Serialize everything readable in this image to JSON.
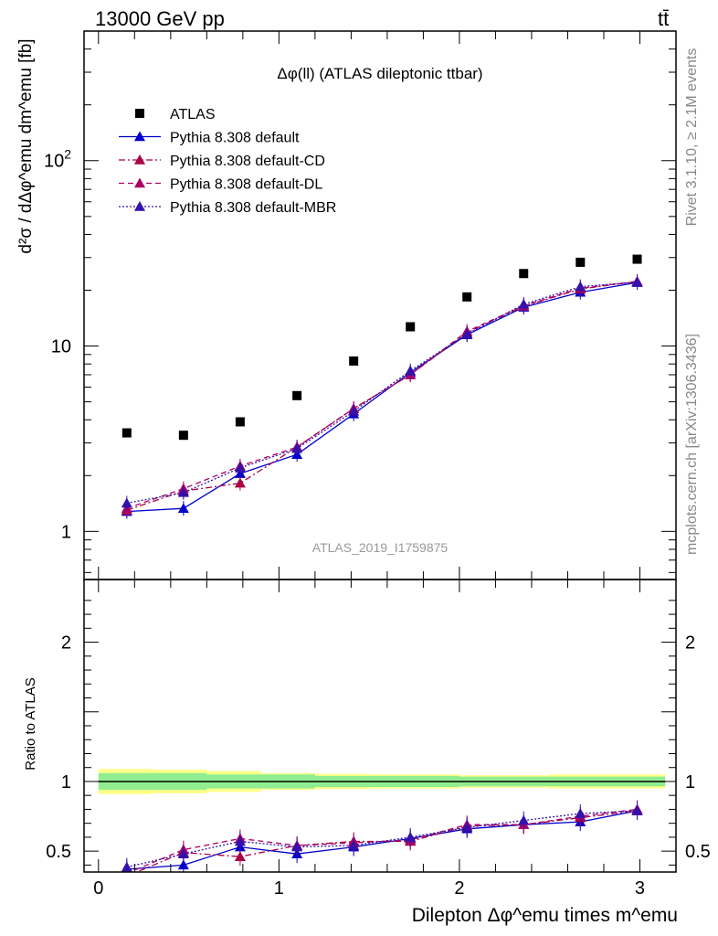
{
  "header": {
    "left": "13000 GeV pp",
    "right": "tt̄"
  },
  "side_text": {
    "rivet": "Rivet 3.1.10, ≥ 2.1M events",
    "mcplots": "mcplots.cern.ch [arXiv:1306.3436]"
  },
  "plot_title": "Δφ(ll) (ATLAS dileptonic ttbar)",
  "analysis_id": "ATLAS_2019_I1759875",
  "y_title_main": "d²σ / dΔφ^emu dm^emu [fb]",
  "y_title_ratio": "Ratio to ATLAS",
  "x_title": "Dilepton Δφ^emu times m^emu",
  "colors": {
    "data": "#000000",
    "default": "#0000cc",
    "cd": "#aa0044",
    "dl": "#aa0066",
    "mbr": "#3311aa",
    "band_inner": "#90ee90",
    "band_outer": "#ffff88"
  },
  "chart_data": [
    {
      "type": "scatter",
      "panel": "main",
      "title": "Δφ(ll) (ATLAS dileptonic ttbar)",
      "xlabel": "Dilepton Δφ^emu times m^emu",
      "ylabel": "d²σ / dΔφ^emu dm^emu [fb]",
      "yscale": "log",
      "xlim": [
        -0.08,
        3.2
      ],
      "ylim": [
        0.55,
        500
      ],
      "x_ticks": [
        0,
        1,
        2,
        3
      ],
      "y_ticks": [
        "1",
        "10",
        "10²"
      ],
      "x": [
        0.157,
        0.471,
        0.785,
        1.1,
        1.414,
        1.728,
        2.042,
        2.356,
        2.67,
        2.985
      ],
      "series": [
        {
          "name": "ATLAS",
          "values": [
            3.4,
            3.3,
            3.9,
            5.4,
            8.3,
            12.7,
            18.4,
            24.6,
            28.3,
            29.4
          ]
        },
        {
          "name": "Pythia 8.308 default",
          "values": [
            1.28,
            1.33,
            2.05,
            2.6,
            4.3,
            7.2,
            11.5,
            16.2,
            19.5,
            22.0
          ]
        },
        {
          "name": "Pythia 8.308 default-CD",
          "values": [
            1.3,
            1.65,
            1.82,
            2.85,
            4.6,
            7.0,
            11.8,
            16.4,
            20.3,
            22.3
          ]
        },
        {
          "name": "Pythia 8.308 default-DL",
          "values": [
            1.33,
            1.7,
            2.25,
            2.85,
            4.6,
            7.0,
            12.0,
            16.5,
            20.5,
            22.3
          ]
        },
        {
          "name": "Pythia 8.308 default-MBR",
          "values": [
            1.42,
            1.62,
            2.2,
            2.8,
            4.45,
            7.35,
            11.6,
            16.8,
            20.9,
            22.1
          ]
        }
      ]
    },
    {
      "type": "scatter",
      "panel": "ratio",
      "ylabel": "Ratio to ATLAS",
      "xlim": [
        -0.08,
        3.2
      ],
      "ylim": [
        0.35,
        2.45
      ],
      "x_ticks": [
        0,
        1,
        2,
        3
      ],
      "y_ticks": [
        "0.5",
        "1",
        "2"
      ],
      "x": [
        0.157,
        0.471,
        0.785,
        1.1,
        1.414,
        1.728,
        2.042,
        2.356,
        2.67,
        2.985
      ],
      "series": [
        {
          "name": "Pythia 8.308 default",
          "values": [
            0.37,
            0.4,
            0.53,
            0.48,
            0.53,
            0.59,
            0.66,
            0.69,
            0.71,
            0.79
          ]
        },
        {
          "name": "Pythia 8.308 default-CD",
          "values": [
            0.32,
            0.49,
            0.46,
            0.54,
            0.57,
            0.57,
            0.68,
            0.69,
            0.74,
            0.79
          ]
        },
        {
          "name": "Pythia 8.308 default-DL",
          "values": [
            0.34,
            0.51,
            0.59,
            0.54,
            0.56,
            0.58,
            0.69,
            0.69,
            0.75,
            0.8
          ]
        },
        {
          "name": "Pythia 8.308 default-MBR",
          "values": [
            0.385,
            0.48,
            0.57,
            0.53,
            0.54,
            0.6,
            0.67,
            0.72,
            0.77,
            0.79
          ]
        }
      ],
      "bands": {
        "inner": [
          [
            0.0,
            0.06
          ],
          [
            0.3,
            0.06
          ],
          [
            0.6,
            0.05
          ],
          [
            0.9,
            0.05
          ],
          [
            1.2,
            0.04
          ],
          [
            1.5,
            0.04
          ],
          [
            2.0,
            0.035
          ],
          [
            2.5,
            0.035
          ],
          [
            3.14,
            0.035
          ]
        ],
        "outer": [
          [
            0.0,
            0.09
          ],
          [
            0.3,
            0.085
          ],
          [
            0.6,
            0.075
          ],
          [
            0.9,
            0.06
          ],
          [
            1.2,
            0.055
          ],
          [
            1.5,
            0.05
          ],
          [
            2.0,
            0.045
          ],
          [
            2.5,
            0.05
          ],
          [
            3.14,
            0.05
          ]
        ]
      }
    }
  ]
}
